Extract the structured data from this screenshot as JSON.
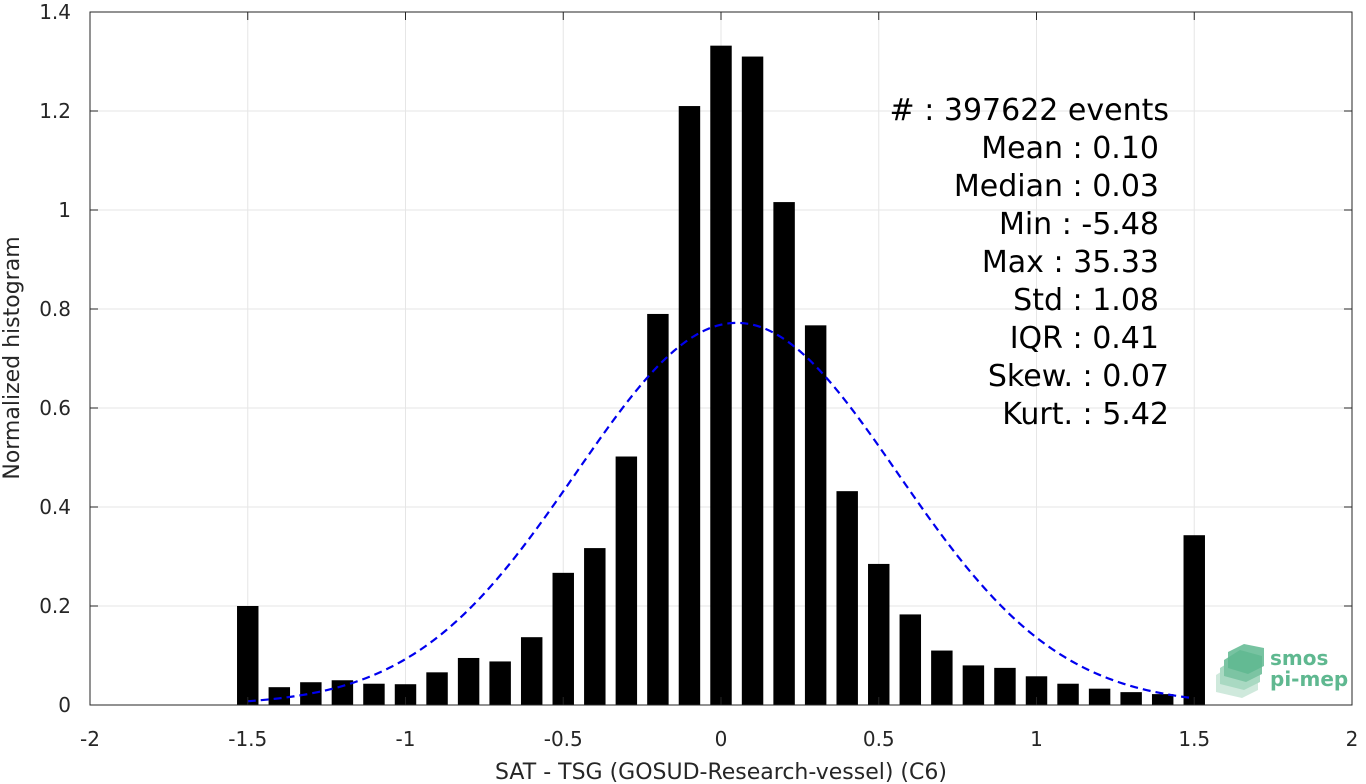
{
  "chart_data": {
    "type": "bar",
    "xlabel": "SAT - TSG (GOSUD-Research-vessel) (C6)",
    "ylabel": "Normalized histogram",
    "xlim": [
      -2,
      2
    ],
    "ylim": [
      0,
      1.4
    ],
    "x_ticks": [
      -2,
      -1.5,
      -1,
      -0.5,
      0,
      0.5,
      1,
      1.5,
      2
    ],
    "x_tick_labels": [
      "-2",
      "-1.5",
      "-1",
      "-0.5",
      "0",
      "0.5",
      "1",
      "1.5",
      "2"
    ],
    "y_ticks": [
      0,
      0.2,
      0.4,
      0.6,
      0.8,
      1,
      1.2,
      1.4
    ],
    "y_tick_labels": [
      "0",
      "0.2",
      "0.4",
      "0.6",
      "0.8",
      "1",
      "1.2",
      "1.4"
    ],
    "grid": true,
    "bar_color": "#000000",
    "x": [
      -1.5,
      -1.4,
      -1.3,
      -1.2,
      -1.1,
      -1.0,
      -0.9,
      -0.8,
      -0.7,
      -0.6,
      -0.5,
      -0.4,
      -0.3,
      -0.2,
      -0.1,
      0.0,
      0.1,
      0.2,
      0.3,
      0.4,
      0.5,
      0.6,
      0.7,
      0.8,
      0.9,
      1.0,
      1.1,
      1.2,
      1.3,
      1.4,
      1.5
    ],
    "values": [
      0.2,
      0.036,
      0.046,
      0.05,
      0.043,
      0.042,
      0.066,
      0.095,
      0.088,
      0.137,
      0.267,
      0.317,
      0.502,
      0.79,
      1.21,
      1.332,
      1.31,
      1.016,
      0.767,
      0.432,
      0.285,
      0.183,
      0.11,
      0.08,
      0.075,
      0.058,
      0.043,
      0.033,
      0.026,
      0.022,
      0.343
    ],
    "fit_curve": {
      "style": "dashed",
      "color": "#0000ee",
      "mean": 0.05,
      "std": 0.51,
      "peak": 0.772,
      "x_range": [
        -1.5,
        1.5
      ]
    }
  },
  "stats": {
    "lines": [
      "#  : 397622 events",
      "Mean : 0.10",
      "Median : 0.03",
      "Min : -5.48",
      "Max : 35.33",
      "Std : 1.08",
      "IQR : 0.41",
      "Skew. : 0.07",
      "Kurt. : 5.42"
    ]
  },
  "logo": {
    "line1": "smos",
    "line2": "pi-mep",
    "color": "#5fb890"
  }
}
